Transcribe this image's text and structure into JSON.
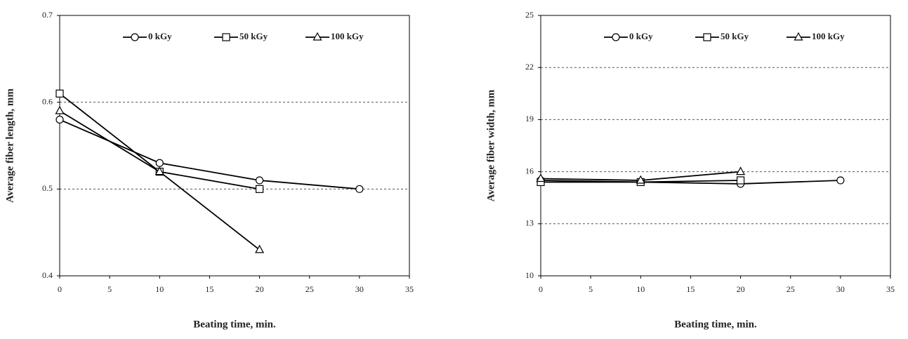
{
  "chart_data": [
    {
      "type": "line",
      "xlabel": "Beating time, min.",
      "ylabel": "Average fiber length, mm",
      "x": [
        0,
        10,
        20,
        30
      ],
      "xlim": [
        0,
        35
      ],
      "xticks": [
        0,
        5,
        10,
        15,
        20,
        25,
        30,
        35
      ],
      "ylim": [
        0.4,
        0.7
      ],
      "yticks": [
        0.4,
        0.5,
        0.6,
        0.7
      ],
      "grid": true,
      "legend": "top",
      "series": [
        {
          "name": "0 kGy",
          "color": "#000000",
          "marker": "circle",
          "values": [
            0.58,
            0.53,
            0.51,
            0.5
          ]
        },
        {
          "name": "50 kGy",
          "color": "#000000",
          "marker": "square",
          "values": [
            0.61,
            0.52,
            0.5,
            null
          ]
        },
        {
          "name": "100 kGy",
          "color": "#000000",
          "marker": "triangle",
          "values": [
            0.59,
            0.52,
            0.43,
            null
          ]
        }
      ]
    },
    {
      "type": "line",
      "xlabel": "Beating time, min.",
      "ylabel": "Average fiber width, mm",
      "x": [
        0,
        10,
        20,
        30
      ],
      "xlim": [
        0,
        35
      ],
      "xticks": [
        0,
        5,
        10,
        15,
        20,
        25,
        30,
        35
      ],
      "ylim": [
        10,
        25
      ],
      "yticks": [
        10,
        13,
        16,
        19,
        22,
        25
      ],
      "grid": true,
      "legend": "top",
      "series": [
        {
          "name": "0 kGy",
          "color": "#000000",
          "marker": "circle",
          "values": [
            15.5,
            15.4,
            15.3,
            15.5
          ]
        },
        {
          "name": "50 kGy",
          "color": "#000000",
          "marker": "square",
          "values": [
            15.4,
            15.4,
            15.5,
            null
          ]
        },
        {
          "name": "100 kGy",
          "color": "#000000",
          "marker": "triangle",
          "values": [
            15.6,
            15.5,
            16.0,
            null
          ]
        }
      ]
    }
  ]
}
